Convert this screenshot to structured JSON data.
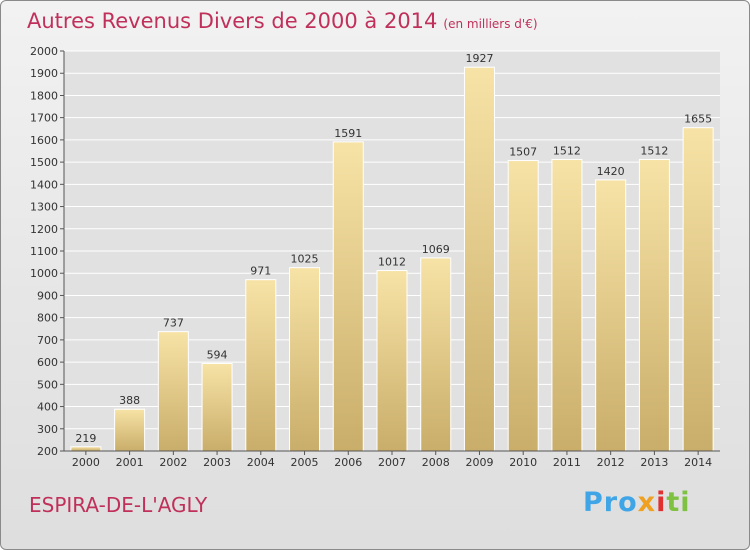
{
  "title": "Autres Revenus Divers de 2000 à 2014",
  "title_unit": "(en milliers d'€)",
  "place": "ESPIRA-DE-L'AGLY",
  "brand": {
    "p1": "Pro",
    "p2": "x",
    "p3": "i",
    "p4": "ti"
  },
  "colors": {
    "title": "#c0305a",
    "bar_top": "#f7e3a6",
    "bar_bottom": "#c9ad6a",
    "grid": "#ffffff"
  },
  "chart_data": {
    "type": "bar",
    "categories": [
      "2000",
      "2001",
      "2002",
      "2003",
      "2004",
      "2005",
      "2006",
      "2007",
      "2008",
      "2009",
      "2010",
      "2011",
      "2012",
      "2013",
      "2014"
    ],
    "values": [
      219,
      388,
      737,
      594,
      971,
      1025,
      1591,
      1012,
      1069,
      1927,
      1507,
      1512,
      1420,
      1512,
      1655
    ],
    "ylim": [
      200,
      2000
    ],
    "yticks": [
      200,
      300,
      400,
      500,
      600,
      700,
      800,
      900,
      1000,
      1100,
      1200,
      1300,
      1400,
      1500,
      1600,
      1700,
      1800,
      1900,
      2000
    ],
    "grid": true,
    "data_labels": true
  }
}
